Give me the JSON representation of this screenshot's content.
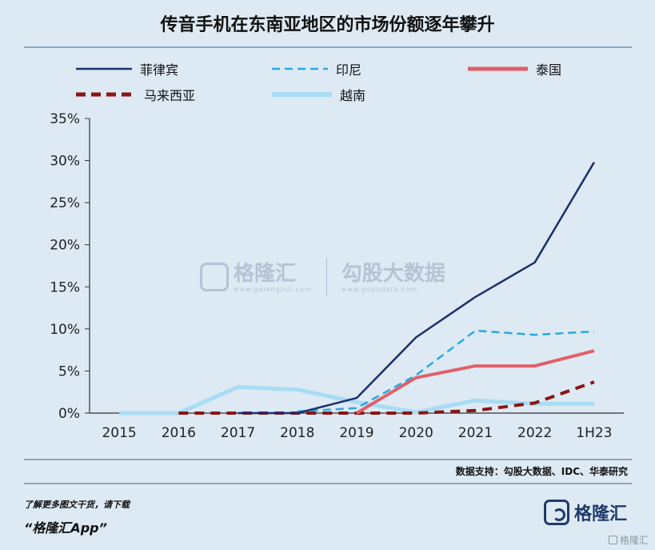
{
  "title": "传音手机在东南亚地区的市场份额逐年攀升",
  "source": "数据支持：勾股大数据、IDC、华泰研究",
  "footer": {
    "note": "了解更多图文干货，请下载",
    "app": "“格隆汇App”",
    "logo": "格隆汇",
    "corner": "格隆汇"
  },
  "watermark": {
    "brand1": "格隆汇",
    "site1": "www.gelonghui.com",
    "brand2": "勾股大数据",
    "site2": "www.gogudata.com"
  },
  "chart_data": {
    "type": "line",
    "title": "传音手机在东南亚地区的市场份额逐年攀升",
    "categories": [
      "2015",
      "2016",
      "2017",
      "2018",
      "2019",
      "2020",
      "2021",
      "2022",
      "1H23"
    ],
    "ylim": [
      0,
      35
    ],
    "y_ticks": [
      "0%",
      "5%",
      "10%",
      "15%",
      "20%",
      "25%",
      "30%",
      "35%"
    ],
    "legend_placement": "top",
    "series": [
      {
        "name": "菲律宾",
        "color": "#1b2f6e",
        "style": "solid",
        "values": [
          null,
          null,
          0,
          0,
          1.8,
          9.0,
          13.8,
          17.9,
          29.8
        ]
      },
      {
        "name": "印尼",
        "color": "#29a9e1",
        "style": "dashed",
        "values": [
          null,
          null,
          null,
          0.2,
          0.6,
          4.5,
          9.8,
          9.3,
          9.7
        ]
      },
      {
        "name": "泰国",
        "color": "#e06069",
        "style": "solid",
        "values": [
          null,
          null,
          null,
          null,
          0,
          4.2,
          5.6,
          5.6,
          7.4
        ]
      },
      {
        "name": "马来西亚",
        "color": "#8b1414",
        "style": "dashed",
        "values": [
          null,
          0,
          0,
          0,
          0,
          0,
          0.3,
          1.2,
          3.7
        ]
      },
      {
        "name": "越南",
        "color": "#a8dcf5",
        "style": "solid",
        "values": [
          0,
          0,
          3.1,
          2.8,
          1.3,
          0.1,
          1.5,
          1.1,
          1.1
        ]
      }
    ]
  }
}
